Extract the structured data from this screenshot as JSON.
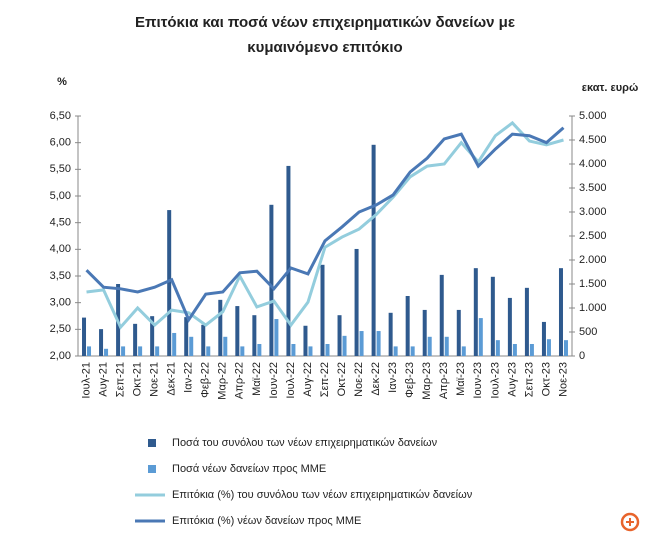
{
  "chart_data": {
    "type": "bar",
    "title": "Επιτόκια και ποσά νέων επιχειρηματικών δανείων με κυμαινόμενο επιτόκιο",
    "ylabel": "%",
    "y2label": "εκατ. ευρώ",
    "categories": [
      "Ιουλ-21",
      "Αυγ-21",
      "Σεπ-21",
      "Οκτ-21",
      "Νοε-21",
      "Δεκ-21",
      "Ιαν-22",
      "Φεβ-22",
      "Μαρ-22",
      "Απρ-22",
      "Μαϊ-22",
      "Ιουν-22",
      "Ιουλ-22",
      "Αυγ-22",
      "Σεπ-22",
      "Οκτ-22",
      "Νοε-22",
      "Δεκ-22",
      "Ιαν-23",
      "Φεβ-23",
      "Μαρ-23",
      "Απρ-23",
      "Μαϊ-23",
      "Ιουν-23",
      "Ιουλ-23",
      "Αυγ-23",
      "Σεπ-23",
      "Οκτ-23",
      "Νοε-23"
    ],
    "series": [
      {
        "name": "Ποσά του συνόλου των νέων επιχειρηματικών δανείων",
        "type": "bar",
        "axis": "y2",
        "color": "#2f5a8e",
        "values": [
          800,
          560,
          1500,
          670,
          830,
          3040,
          810,
          650,
          1170,
          1040,
          850,
          3150,
          3960,
          630,
          1900,
          850,
          2230,
          4400,
          900,
          1250,
          960,
          1690,
          960,
          1830,
          1650,
          1210,
          1420,
          710,
          1830
        ]
      },
      {
        "name": "Ποσά νέων δανείων προς ΜΜΕ",
        "type": "bar",
        "axis": "y2",
        "color": "#5b9bd5",
        "values": [
          200,
          150,
          200,
          200,
          200,
          480,
          400,
          200,
          400,
          200,
          250,
          770,
          250,
          200,
          250,
          420,
          520,
          520,
          200,
          200,
          400,
          400,
          200,
          790,
          330,
          250,
          250,
          350,
          330
        ]
      },
      {
        "name": "Επιτόκια (%) του συνόλου των νέων επιχειρηματικών δανείων",
        "type": "line",
        "color": "#93cddd",
        "values": [
          3.2,
          3.24,
          2.54,
          2.9,
          2.58,
          2.86,
          2.81,
          2.58,
          2.83,
          3.5,
          2.92,
          3.03,
          2.58,
          3.01,
          4.04,
          4.23,
          4.38,
          4.65,
          4.98,
          5.36,
          5.56,
          5.6,
          6.0,
          5.64,
          6.13,
          6.37,
          6.03,
          5.96,
          6.05
        ]
      },
      {
        "name": "Επιτόκια (%) νέων δανείων προς ΜΜΕ",
        "type": "line",
        "color": "#4a78b5",
        "values": [
          3.61,
          3.29,
          3.26,
          3.2,
          3.29,
          3.43,
          2.68,
          3.16,
          3.2,
          3.56,
          3.59,
          3.26,
          3.65,
          3.54,
          4.16,
          4.42,
          4.7,
          4.83,
          5.02,
          5.45,
          5.71,
          6.07,
          6.16,
          5.56,
          5.88,
          6.16,
          6.13,
          6.0,
          6.28
        ]
      }
    ],
    "ylim": [
      2,
      6.5
    ],
    "yticks": [
      {
        "value": 2,
        "label": "2,00"
      },
      {
        "value": 2.5,
        "label": "2,50"
      },
      {
        "value": 3,
        "label": "3,00"
      },
      {
        "value": 3.5,
        "label": "3,50"
      },
      {
        "value": 4,
        "label": "4,00"
      },
      {
        "value": 4.5,
        "label": "4,50"
      },
      {
        "value": 5,
        "label": "5,00"
      },
      {
        "value": 5.5,
        "label": "5,50"
      },
      {
        "value": 6,
        "label": "6,00"
      },
      {
        "value": 6.5,
        "label": "6,50"
      }
    ],
    "y2lim": [
      0,
      5000
    ],
    "y2ticks": [
      0,
      500,
      {
        "value": 1000,
        "label": "1.000"
      },
      {
        "value": 1500,
        "label": "1.500"
      },
      {
        "value": 2000,
        "label": "2.000"
      },
      {
        "value": 2500,
        "label": "2.500"
      },
      {
        "value": 3000,
        "label": "3.000"
      },
      {
        "value": 3500,
        "label": "3.500"
      },
      {
        "value": 4000,
        "label": "4.000"
      },
      {
        "value": 4500,
        "label": "4.500"
      },
      {
        "value": 5000,
        "label": "5.000"
      }
    ]
  }
}
